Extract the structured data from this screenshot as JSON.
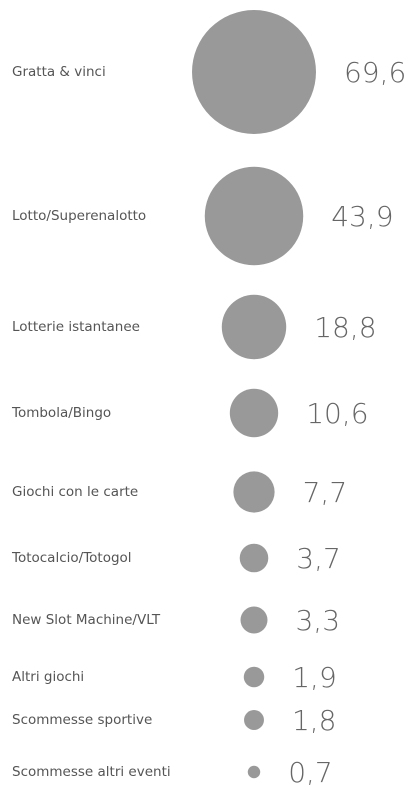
{
  "chart_data": {
    "type": "bubble",
    "categories": [
      "Gratta & vinci",
      "Lotto/Superenalotto",
      "Lotterie istantanee",
      "Tombola/Bingo",
      "Giochi con le carte",
      "Totocalcio/Totogol",
      "New Slot Machine/VLT",
      "Altri giochi",
      "Scommesse sportive",
      "Scommesse altri eventi"
    ],
    "values": [
      69.6,
      43.9,
      18.8,
      10.6,
      7.7,
      3.7,
      3.3,
      1.9,
      1.8,
      0.7
    ],
    "value_labels": [
      "69,6",
      "43,9",
      "18,8",
      "10,6",
      "7,7",
      "3,7",
      "3,3",
      "1,9",
      "1,8",
      "0,7"
    ],
    "color": "#999999"
  }
}
